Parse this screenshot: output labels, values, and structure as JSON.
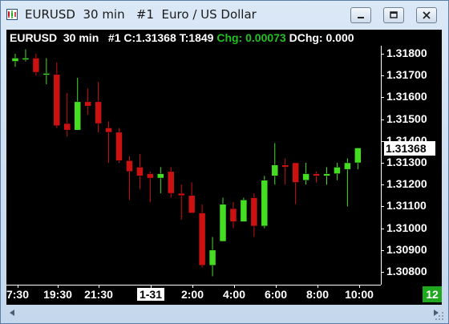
{
  "window": {
    "title": "EURUSD  30 min   #1  Euro / US Dollar",
    "accent": "#5a7ea8"
  },
  "header": {
    "symbol_info": "EURUSD  30 min   #1 C:1.31368 T:1849 ",
    "change_label": "Chg: 0.00073",
    "daily_change": " DChg: 0.000"
  },
  "price_scale": {
    "labels": [
      "1.31800",
      "1.31700",
      "1.31600",
      "1.31500",
      "1.31400",
      "1.31300",
      "1.31200",
      "1.31100",
      "1.31000",
      "1.30900",
      "1.30800"
    ],
    "current_price": "1.31368"
  },
  "time_axis": {
    "labels": [
      "7:30",
      "19:30",
      "21:30",
      "1-31",
      "2:00",
      "4:00",
      "6:00",
      "8:00",
      "10:00"
    ],
    "highlighted": "1-31"
  },
  "counter": "12",
  "colors": {
    "up": "#44dd22",
    "down": "#cc1111",
    "background": "#000000",
    "counter": "#1fa81f"
  },
  "chart_data": {
    "type": "candlestick",
    "title": "EURUSD  30 min",
    "ylim": [
      1.3075,
      1.3187
    ],
    "candles": [
      {
        "o": 1.31765,
        "h": 1.318,
        "l": 1.3174,
        "c": 1.3178
      },
      {
        "o": 1.31775,
        "h": 1.3182,
        "l": 1.31765,
        "c": 1.3178
      },
      {
        "o": 1.3178,
        "h": 1.318,
        "l": 1.317,
        "c": 1.31715
      },
      {
        "o": 1.3171,
        "h": 1.3178,
        "l": 1.3166,
        "c": 1.3171
      },
      {
        "o": 1.31705,
        "h": 1.3176,
        "l": 1.3146,
        "c": 1.3147
      },
      {
        "o": 1.3148,
        "h": 1.3162,
        "l": 1.3142,
        "c": 1.3145
      },
      {
        "o": 1.3145,
        "h": 1.3169,
        "l": 1.3145,
        "c": 1.3158
      },
      {
        "o": 1.3158,
        "h": 1.3164,
        "l": 1.3152,
        "c": 1.3156
      },
      {
        "o": 1.3158,
        "h": 1.3167,
        "l": 1.3144,
        "c": 1.3148
      },
      {
        "o": 1.3146,
        "h": 1.3149,
        "l": 1.313,
        "c": 1.3144
      },
      {
        "o": 1.3144,
        "h": 1.3146,
        "l": 1.313,
        "c": 1.3131
      },
      {
        "o": 1.3131,
        "h": 1.3133,
        "l": 1.3113,
        "c": 1.3126
      },
      {
        "o": 1.3128,
        "h": 1.3134,
        "l": 1.3118,
        "c": 1.3124
      },
      {
        "o": 1.3125,
        "h": 1.3126,
        "l": 1.3112,
        "c": 1.3123
      },
      {
        "o": 1.3123,
        "h": 1.3128,
        "l": 1.3116,
        "c": 1.3125
      },
      {
        "o": 1.3126,
        "h": 1.3128,
        "l": 1.3114,
        "c": 1.3116
      },
      {
        "o": 1.3116,
        "h": 1.312,
        "l": 1.3104,
        "c": 1.3115
      },
      {
        "o": 1.3115,
        "h": 1.3121,
        "l": 1.3108,
        "c": 1.3107
      },
      {
        "o": 1.3107,
        "h": 1.3111,
        "l": 1.3082,
        "c": 1.3083
      },
      {
        "o": 1.3083,
        "h": 1.3096,
        "l": 1.3078,
        "c": 1.309
      },
      {
        "o": 1.3094,
        "h": 1.3114,
        "l": 1.3094,
        "c": 1.3111
      },
      {
        "o": 1.3109,
        "h": 1.3112,
        "l": 1.31,
        "c": 1.3103
      },
      {
        "o": 1.3103,
        "h": 1.3114,
        "l": 1.3103,
        "c": 1.3113
      },
      {
        "o": 1.3114,
        "h": 1.3116,
        "l": 1.3096,
        "c": 1.3101
      },
      {
        "o": 1.3101,
        "h": 1.3124,
        "l": 1.31,
        "c": 1.3122
      },
      {
        "o": 1.3124,
        "h": 1.3139,
        "l": 1.312,
        "c": 1.3129
      },
      {
        "o": 1.3129,
        "h": 1.3132,
        "l": 1.312,
        "c": 1.3128
      },
      {
        "o": 1.313,
        "h": 1.313,
        "l": 1.3111,
        "c": 1.3121
      },
      {
        "o": 1.3122,
        "h": 1.313,
        "l": 1.312,
        "c": 1.3125
      },
      {
        "o": 1.3125,
        "h": 1.3126,
        "l": 1.3121,
        "c": 1.3124
      },
      {
        "o": 1.3124,
        "h": 1.3128,
        "l": 1.312,
        "c": 1.3125
      },
      {
        "o": 1.3125,
        "h": 1.313,
        "l": 1.3122,
        "c": 1.3128
      },
      {
        "o": 1.3127,
        "h": 1.3132,
        "l": 1.311,
        "c": 1.313
      },
      {
        "o": 1.313,
        "h": 1.3137,
        "l": 1.3127,
        "c": 1.31368
      }
    ]
  }
}
